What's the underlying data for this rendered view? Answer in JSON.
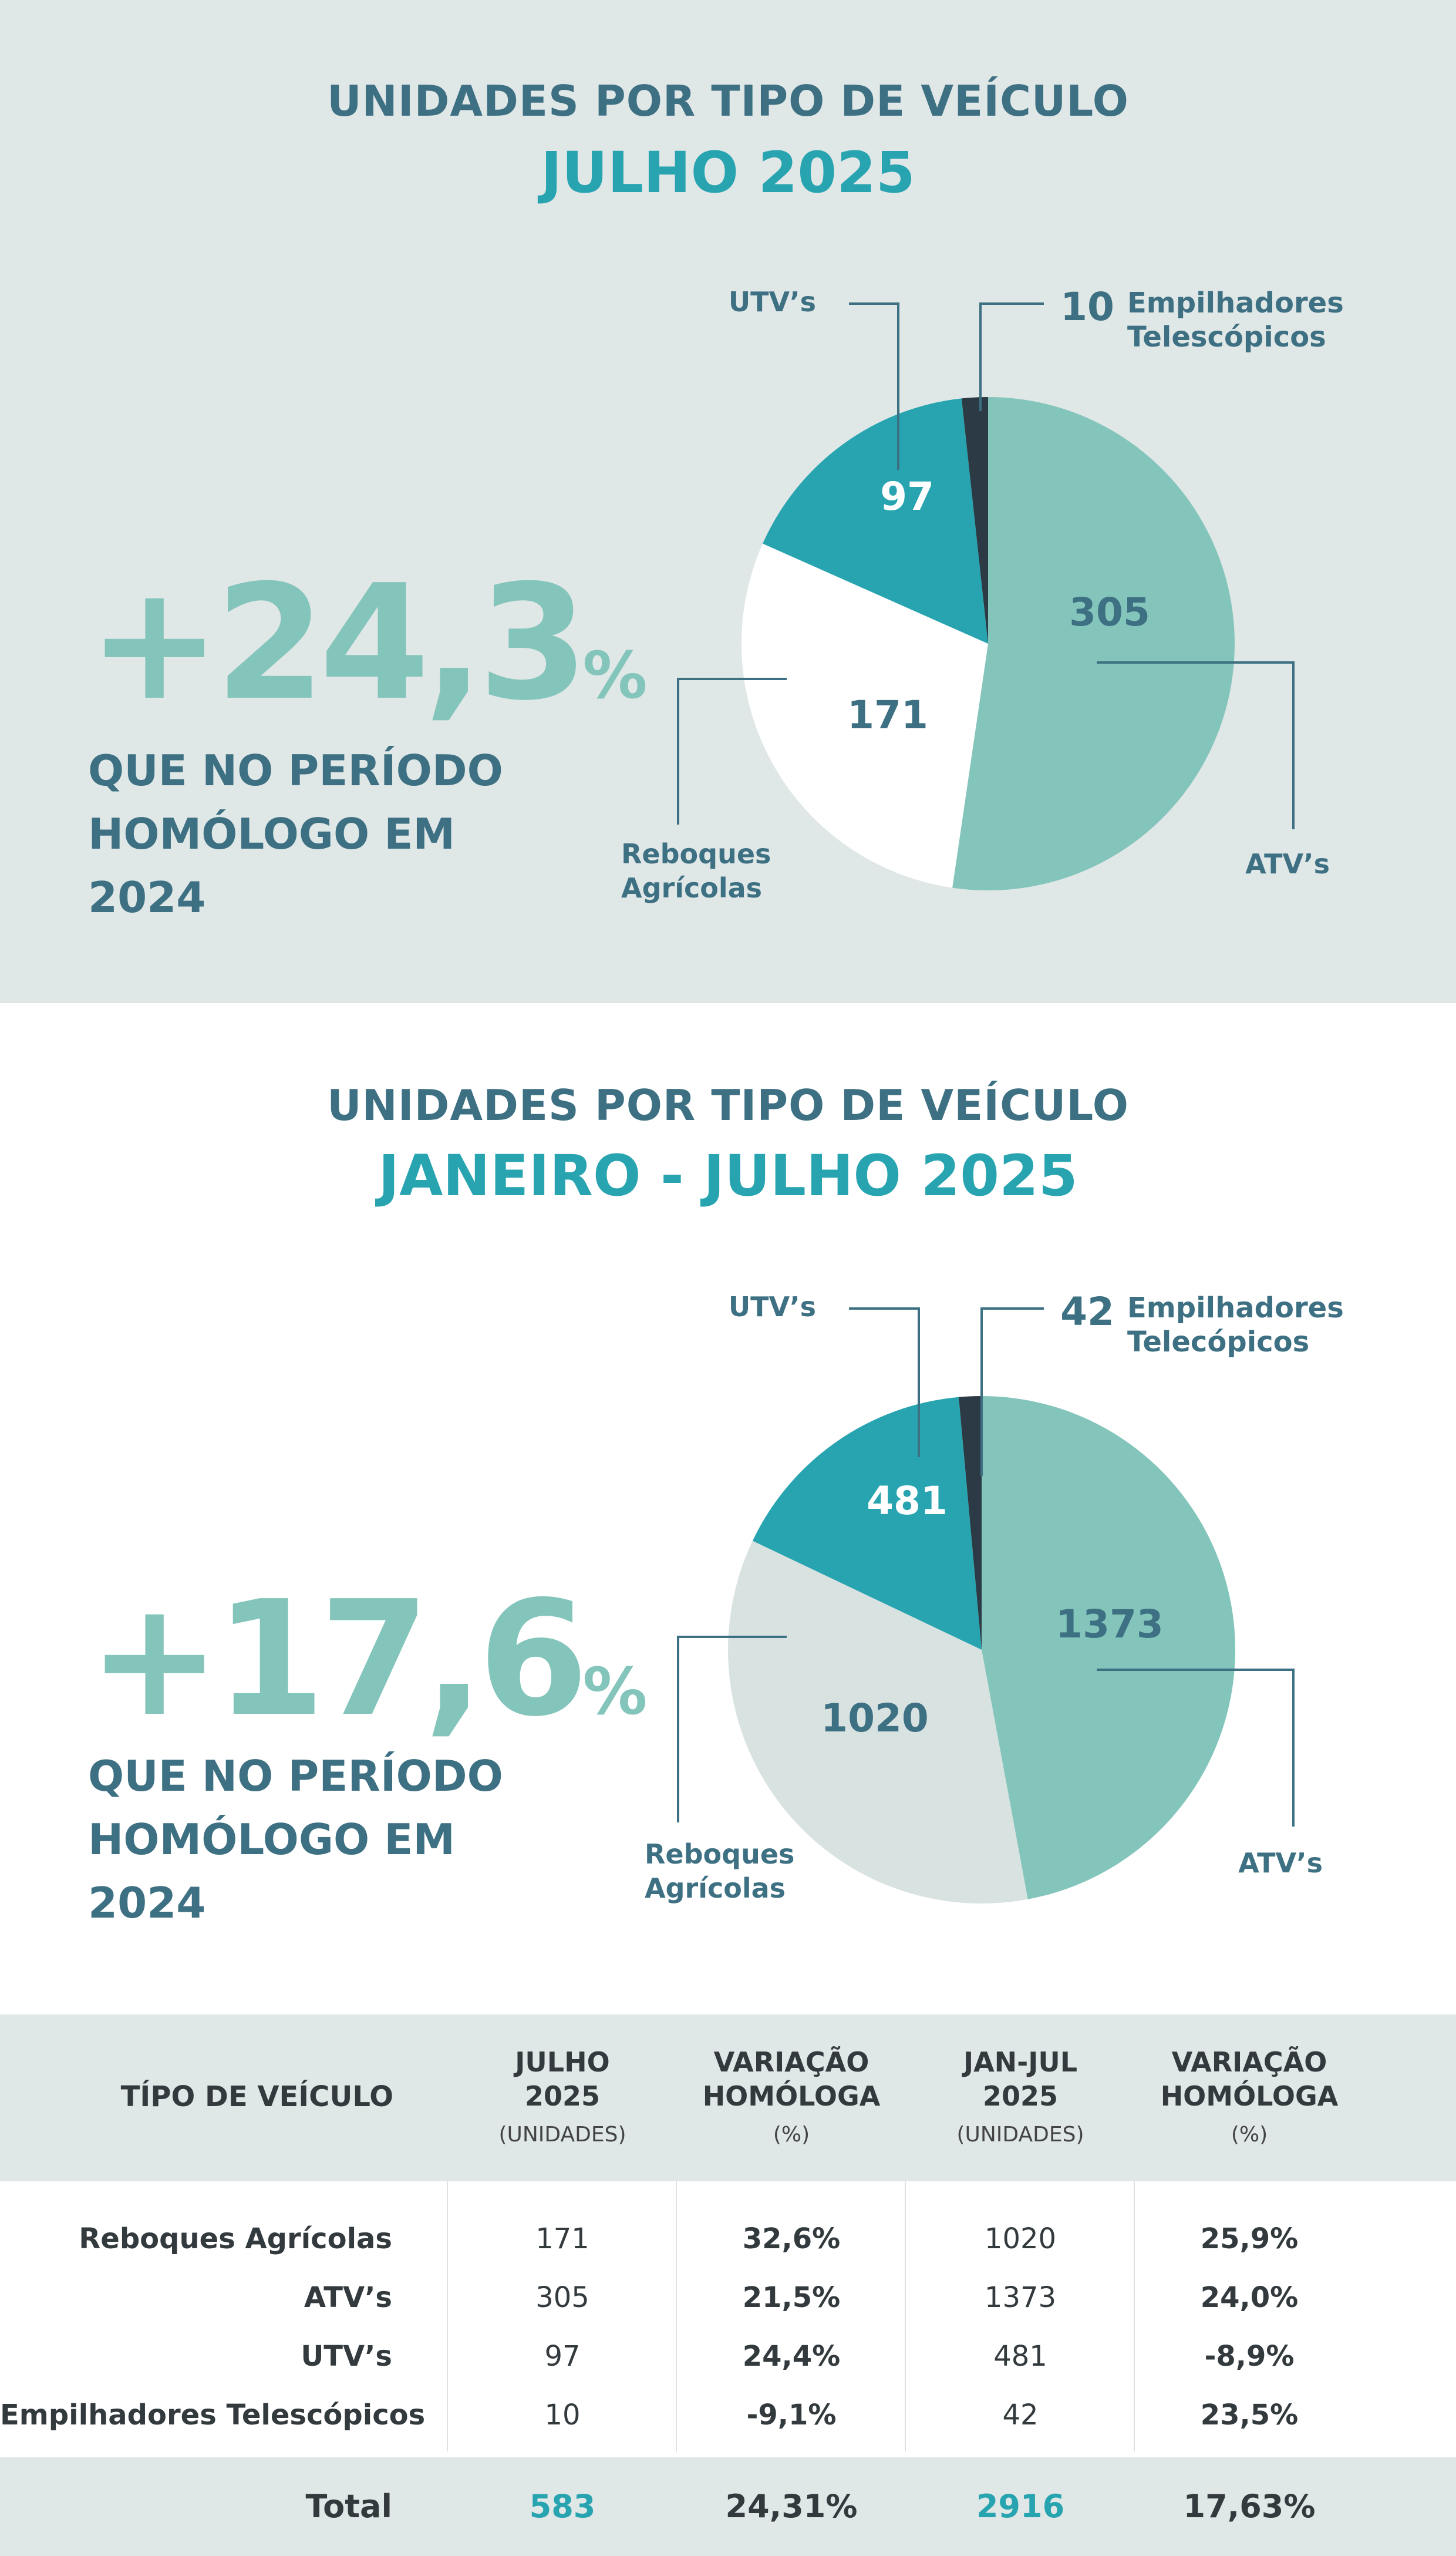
{
  "section1": {
    "title": "UNIDADES POR TIPO DE VEÍCULO",
    "subtitle": "JULHO 2025",
    "growth": "+24,3",
    "growth_unit": "%",
    "caption": [
      "QUE NO PERÍODO",
      "HOMÓLOGO EM",
      "2024"
    ]
  },
  "section2": {
    "title": "UNIDADES POR TIPO DE VEÍCULO",
    "subtitle": "JANEIRO - JULHO 2025",
    "growth": "+17,6",
    "growth_unit": "%",
    "caption": [
      "QUE NO PERÍODO",
      "HOMÓLOGO EM",
      "2024"
    ]
  },
  "chart_data": [
    {
      "type": "pie",
      "title": "JULHO 2025",
      "categories": [
        "ATV’s",
        "Reboques Agrícolas",
        "UTV’s",
        "Empilhadores Telescópicos"
      ],
      "values": [
        305,
        171,
        97,
        10
      ],
      "colors": [
        "#84c5bb",
        "#ffffff",
        "#27a4b0",
        "#2b3a44"
      ],
      "label_colors": [
        "#3d7082",
        "#3d7082",
        "#ffffff",
        "#3d7082"
      ],
      "labels": [
        {
          "lines": [
            "ATV’s"
          ]
        },
        {
          "lines": [
            "Reboques",
            "Agrícolas"
          ]
        },
        {
          "lines": [
            "UTV’s"
          ]
        },
        {
          "lines": [
            "Empilhadores",
            "Telescópicos"
          ]
        }
      ]
    },
    {
      "type": "pie",
      "title": "JANEIRO - JULHO 2025",
      "categories": [
        "ATV’s",
        "Reboques Agrícolas",
        "UTV’s",
        "Empilhadores Telecópicos"
      ],
      "values": [
        1373,
        1020,
        481,
        42
      ],
      "colors": [
        "#84c5bb",
        "#d8e2e1",
        "#27a4b0",
        "#2b3a44"
      ],
      "label_colors": [
        "#3d7082",
        "#3d7082",
        "#ffffff",
        "#3d7082"
      ],
      "labels": [
        {
          "lines": [
            "ATV’s"
          ]
        },
        {
          "lines": [
            "Reboques",
            "Agrícolas"
          ]
        },
        {
          "lines": [
            "UTV’s"
          ]
        },
        {
          "lines": [
            "Empilhadores",
            "Telecópicos"
          ]
        }
      ]
    }
  ],
  "table": {
    "header": {
      "vehicle": "TÍPO DE VEÍCULO",
      "cols": [
        {
          "l1": "JULHO",
          "l2": "2025",
          "unit": "(UNIDADES)"
        },
        {
          "l1": "VARIAÇÃO",
          "l2": "HOMÓLOGA",
          "unit": "(%)"
        },
        {
          "l1": "JAN-JUL",
          "l2": "2025",
          "unit": "(UNIDADES)"
        },
        {
          "l1": "VARIAÇÃO",
          "l2": "HOMÓLOGA",
          "unit": "(%)"
        }
      ]
    },
    "rows": [
      {
        "name": "Reboques Agrícolas",
        "jul": "171",
        "jul_var": "32,6%",
        "ytd": "1020",
        "ytd_var": "25,9%"
      },
      {
        "name": "ATV’s",
        "jul": "305",
        "jul_var": "21,5%",
        "ytd": "1373",
        "ytd_var": "24,0%"
      },
      {
        "name": "UTV’s",
        "jul": "97",
        "jul_var": "24,4%",
        "ytd": "481",
        "ytd_var": "-8,9%"
      },
      {
        "name": "Empilhadores Telescópicos",
        "jul": "10",
        "jul_var": "-9,1%",
        "ytd": "42",
        "ytd_var": "23,5%"
      }
    ],
    "total": {
      "name": "Total",
      "jul": "583",
      "jul_var": "24,31%",
      "ytd": "2916",
      "ytd_var": "17,63%"
    }
  }
}
